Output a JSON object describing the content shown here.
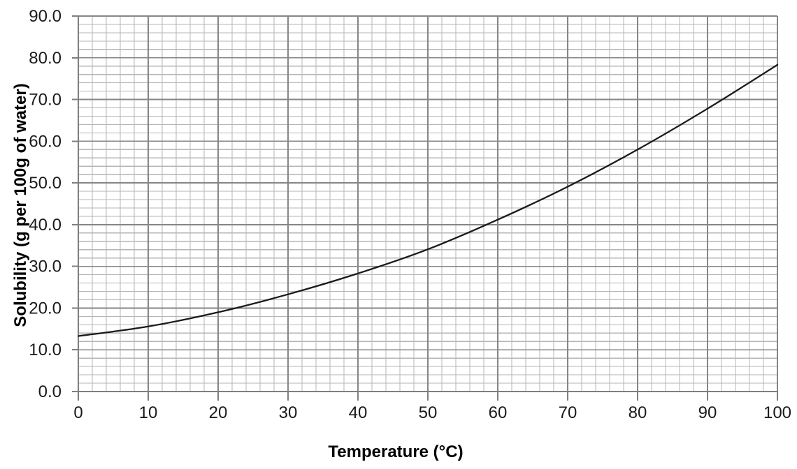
{
  "figure": {
    "background": "#ffffff"
  },
  "chart_data": {
    "type": "line",
    "title": "",
    "xlabel": "Temperature (°C)",
    "ylabel": "Solubility (g per 100g of water)",
    "x": [
      0,
      10,
      20,
      30,
      40,
      50,
      60,
      70,
      80,
      90,
      100
    ],
    "values": [
      13.3,
      15.6,
      19.0,
      23.3,
      28.3,
      34.1,
      41.2,
      49.1,
      58.0,
      67.8,
      78.3
    ],
    "xlim": [
      0,
      100
    ],
    "ylim": [
      0,
      90
    ],
    "x_major_step": 10,
    "y_major_step": 10,
    "x_minor_step": 2,
    "y_minor_step": 2,
    "x_tick_labels": [
      "0",
      "10",
      "20",
      "30",
      "40",
      "50",
      "60",
      "70",
      "80",
      "90",
      "100"
    ],
    "y_tick_labels": [
      "0.0",
      "10.0",
      "20.0",
      "30.0",
      "40.0",
      "50.0",
      "60.0",
      "70.0",
      "80.0",
      "90.0"
    ],
    "grid": "major+minor",
    "legend": "none",
    "markers": "none",
    "line_color": "#1a1a1a",
    "line_width": 2.3,
    "minor_grid_color": "#b5b5b5",
    "major_grid_color": "#868686",
    "axis_color": "#7f7f7f",
    "tick_label_color": "#1a1a1a"
  }
}
